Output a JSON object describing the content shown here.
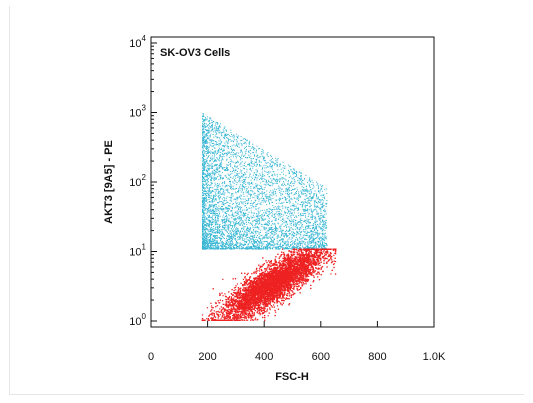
{
  "chart_data": {
    "type": "scatter",
    "title": "SK-OV3 Cells",
    "xlabel": "FSC-H",
    "ylabel": "AKT3 [9A5] - PE",
    "xlim": [
      0,
      1000
    ],
    "ylim": [
      1,
      10000
    ],
    "y_scale": "log",
    "grid": false,
    "legend": "none",
    "x_tick_labels": [
      "0",
      "200",
      "400",
      "600",
      "800",
      "1.0K"
    ],
    "x_ticks": [
      0,
      200,
      400,
      600,
      800,
      1000
    ],
    "y_tick_labels": [
      {
        "base": "10",
        "exp": "0"
      },
      {
        "base": "10",
        "exp": "1"
      },
      {
        "base": "10",
        "exp": "2"
      },
      {
        "base": "10",
        "exp": "3"
      },
      {
        "base": "10",
        "exp": "4"
      }
    ],
    "y_ticks": [
      1,
      10,
      100,
      1000,
      10000
    ],
    "series": [
      {
        "color": "#35b5d3",
        "population": {
          "x_range": [
            180,
            620
          ],
          "y_range": [
            11,
            1000
          ],
          "approx_events": 5000
        }
      },
      {
        "color": "#ee2222",
        "population": {
          "x_center": 430,
          "x_range": [
            180,
            650
          ],
          "y_center": 3.5,
          "y_range": [
            1,
            11
          ],
          "approx_events": 9000
        }
      }
    ]
  }
}
